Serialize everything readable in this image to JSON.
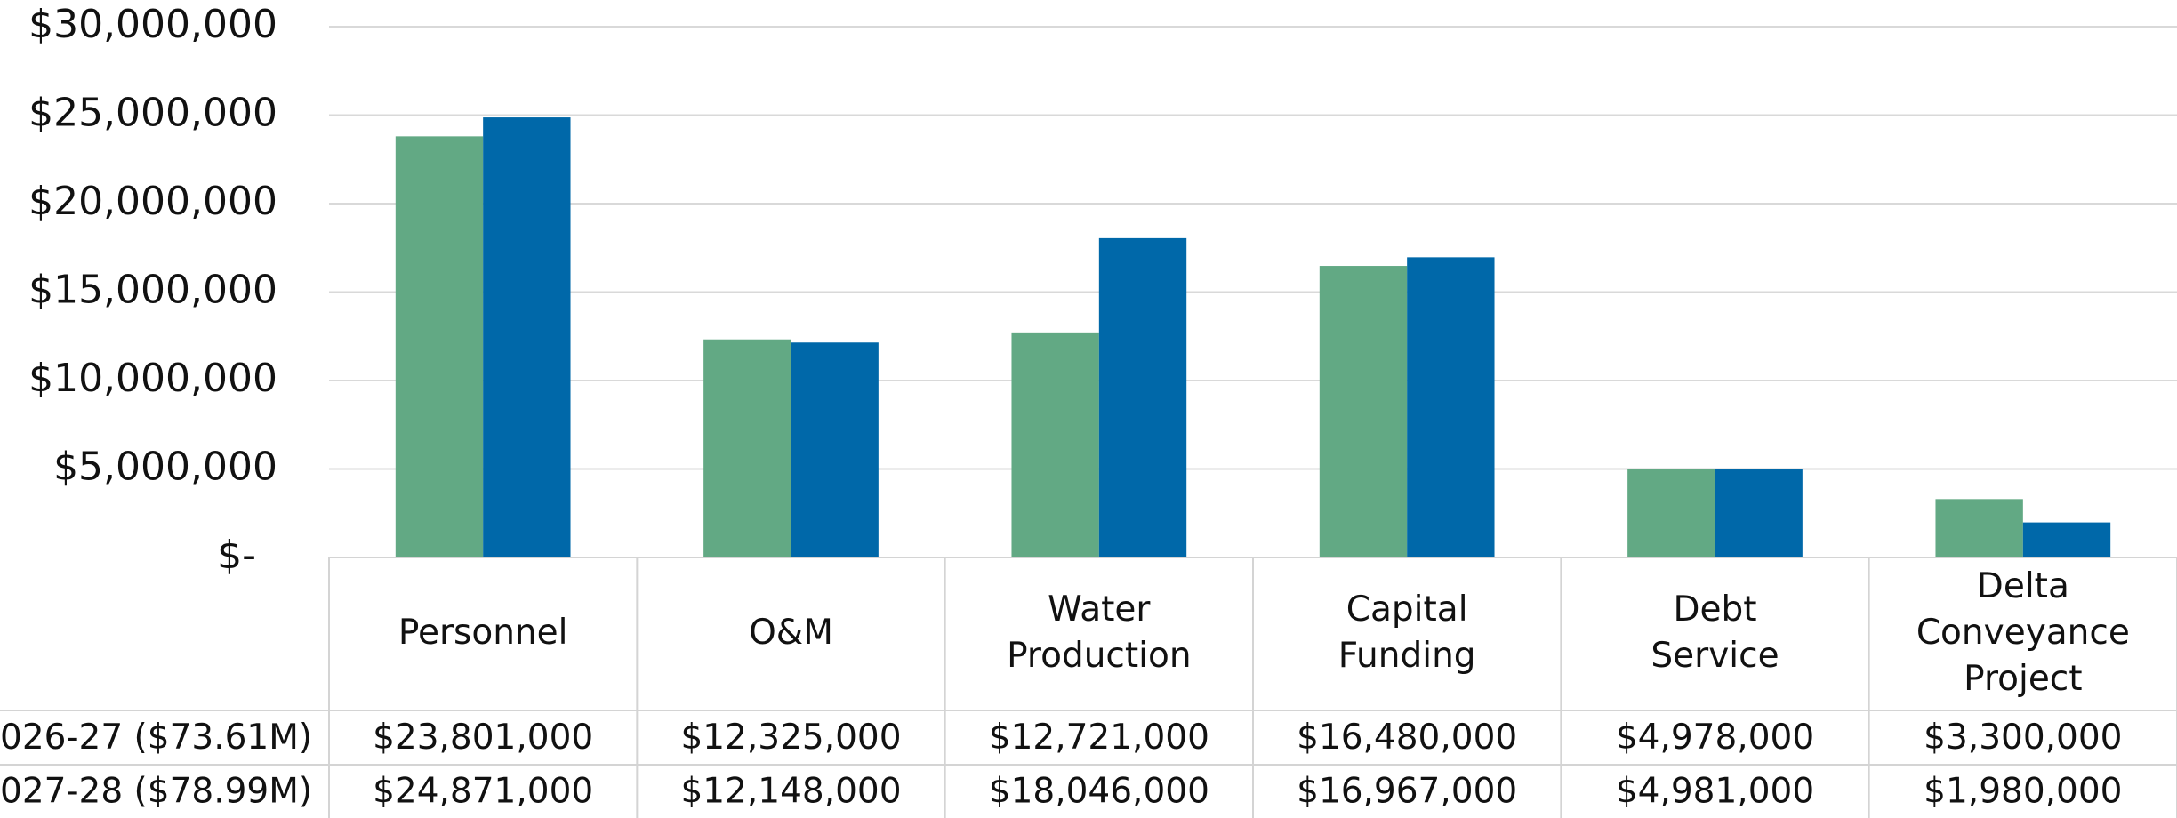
{
  "chart_data": {
    "type": "bar",
    "categories": [
      "Personnel",
      "O&M",
      "Water Production",
      "Capital Funding",
      "Debt Service",
      "Delta Conveyance Project"
    ],
    "series": [
      {
        "name": "026-27 ($73.61M)",
        "color": "#62a984",
        "values": [
          23801000,
          12325000,
          12721000,
          16480000,
          4978000,
          3300000
        ],
        "value_labels": [
          "$23,801,000",
          "$12,325,000",
          "$12,721,000",
          "$16,480,000",
          "$4,978,000",
          "$3,300,000"
        ]
      },
      {
        "name": "027-28 ($78.99M)",
        "color": "#0068a9",
        "values": [
          24871000,
          12148000,
          18046000,
          16967000,
          4981000,
          1980000
        ],
        "value_labels": [
          "$24,871,000",
          "$12,148,000",
          "$18,046,000",
          "$16,967,000",
          "$4,981,000",
          "$1,980,000"
        ]
      }
    ],
    "ylim": [
      0,
      30000000
    ],
    "yticks": [
      {
        "value": 0,
        "label": "$-"
      },
      {
        "value": 5000000,
        "label": "$5,000,000"
      },
      {
        "value": 10000000,
        "label": "$10,000,000"
      },
      {
        "value": 15000000,
        "label": "$15,000,000"
      },
      {
        "value": 20000000,
        "label": "$20,000,000"
      },
      {
        "value": 25000000,
        "label": "$25,000,000"
      },
      {
        "value": 30000000,
        "label": "$30,000,000"
      }
    ],
    "grid": true
  }
}
